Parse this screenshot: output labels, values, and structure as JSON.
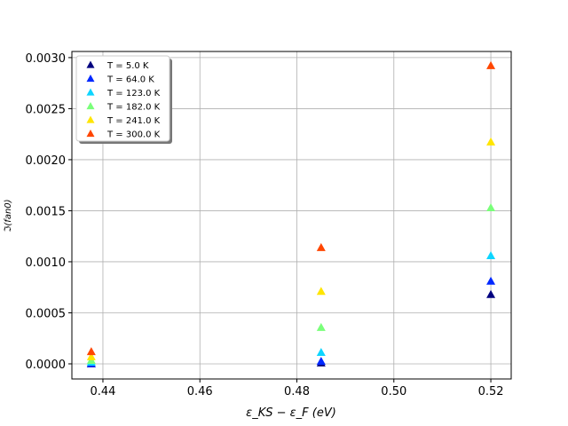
{
  "chart_data": {
    "type": "scatter",
    "title": "",
    "xlabel": "ε_KS − ε_F (eV)",
    "ylabel": "ℑ(fan0)",
    "xlim": [
      0.4336,
      0.5242
    ],
    "ylim": [
      -0.000148,
      0.00306
    ],
    "grid": true,
    "legend_position": "top-left",
    "x": [
      0.4376,
      0.485,
      0.52
    ],
    "xticks": [
      "0.44",
      "0.46",
      "0.48",
      "0.50",
      "0.52"
    ],
    "xtick_values": [
      0.44,
      0.46,
      0.48,
      0.5,
      0.52
    ],
    "yticks": [
      "0.0000",
      "0.0005",
      "0.0010",
      "0.0015",
      "0.0020",
      "0.0025",
      "0.0030"
    ],
    "ytick_values": [
      0,
      0.0005,
      0.001,
      0.0015,
      0.002,
      0.0025,
      0.003
    ],
    "marker": "triangle-up",
    "series": [
      {
        "name": "T = 5.0 K",
        "color": "#00007f",
        "values": [
          1e-06,
          1e-05,
          0.00068
        ]
      },
      {
        "name": "T = 64.0 K",
        "color": "#0028ff",
        "values": [
          3e-06,
          2.6e-05,
          0.00081
        ]
      },
      {
        "name": "T = 123.0 K",
        "color": "#0dd5ff",
        "values": [
          1.7e-05,
          0.000113,
          0.00106
        ]
      },
      {
        "name": "T = 182.0 K",
        "color": "#7aff7a",
        "values": [
          3.5e-05,
          0.000357,
          0.00153
        ]
      },
      {
        "name": "T = 241.0 K",
        "color": "#ffe500",
        "values": [
          7e-05,
          0.00071,
          0.002174
        ]
      },
      {
        "name": "T = 300.0 K",
        "color": "#ff4600",
        "values": [
          0.00012,
          0.00114,
          0.002922
        ]
      }
    ]
  }
}
